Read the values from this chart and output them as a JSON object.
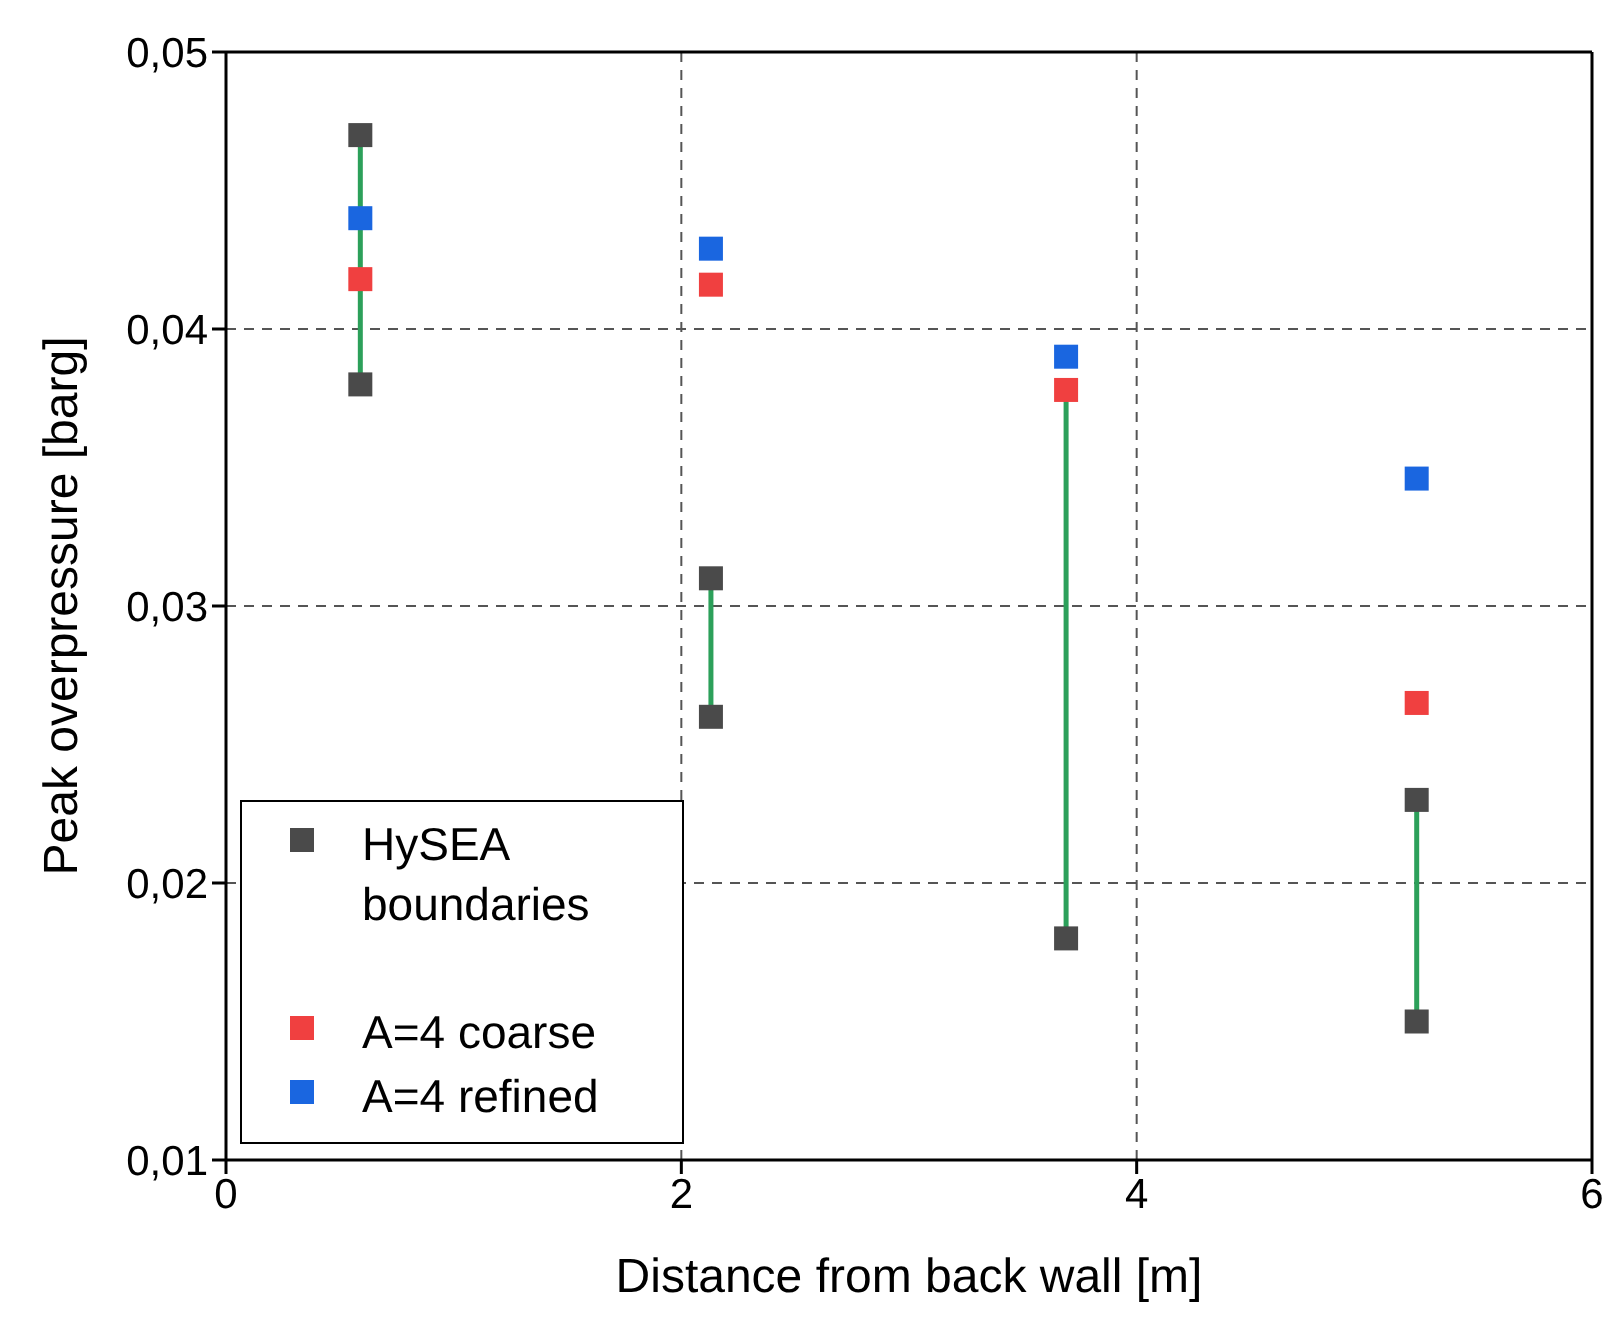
{
  "chart_data": {
    "type": "scatter",
    "xlabel": "Distance from back wall [m]",
    "ylabel": "Peak overpressure [barg]",
    "xlim": [
      0,
      6
    ],
    "xticks": [
      0,
      2,
      4,
      6
    ],
    "ylim": [
      0.01,
      0.05
    ],
    "yticks": [
      {
        "value": 0.01,
        "label": "0,01"
      },
      {
        "value": 0.02,
        "label": "0,02"
      },
      {
        "value": 0.03,
        "label": "0,03"
      },
      {
        "value": 0.04,
        "label": "0,04"
      },
      {
        "value": 0.05,
        "label": "0,05"
      }
    ],
    "grid": true,
    "line_style": "dashed",
    "legend": "bottom left",
    "marker": "square",
    "series": [
      {
        "type": "line",
        "color": "#2ca05a",
        "x": [
          0.59,
          0.59
        ],
        "values": [
          0.047,
          0.038
        ],
        "marker": "none",
        "line_style": "solid"
      },
      {
        "type": "line",
        "color": "#2ca05a",
        "x": [
          2.13,
          2.13
        ],
        "values": [
          0.031,
          0.026
        ],
        "marker": "none",
        "line_style": "solid"
      },
      {
        "type": "line",
        "color": "#2ca05a",
        "x": [
          3.69,
          3.69
        ],
        "values": [
          0.038,
          0.018
        ],
        "marker": "none",
        "line_style": "solid"
      },
      {
        "type": "line",
        "color": "#2ca05a",
        "x": [
          5.23,
          5.23
        ],
        "values": [
          0.023,
          0.015
        ],
        "marker": "none",
        "line_style": "solid"
      },
      {
        "name": "HySEA boundaries",
        "color": "#4a4a4a",
        "x": [
          0.59,
          0.59,
          2.13,
          2.13,
          3.69,
          5.23,
          5.23
        ],
        "values": [
          0.047,
          0.038,
          0.031,
          0.026,
          0.018,
          0.023,
          0.015
        ]
      },
      {
        "name": "A=4 coarse",
        "color": "#f04040",
        "x": [
          0.59,
          2.13,
          3.69,
          5.23
        ],
        "values": [
          0.0418,
          0.0416,
          0.0378,
          0.0265
        ]
      },
      {
        "name": "A=4 refined",
        "color": "#1a66e0",
        "x": [
          0.59,
          2.13,
          3.69,
          5.23
        ],
        "values": [
          0.044,
          0.0429,
          0.039,
          0.0346
        ]
      }
    ]
  }
}
